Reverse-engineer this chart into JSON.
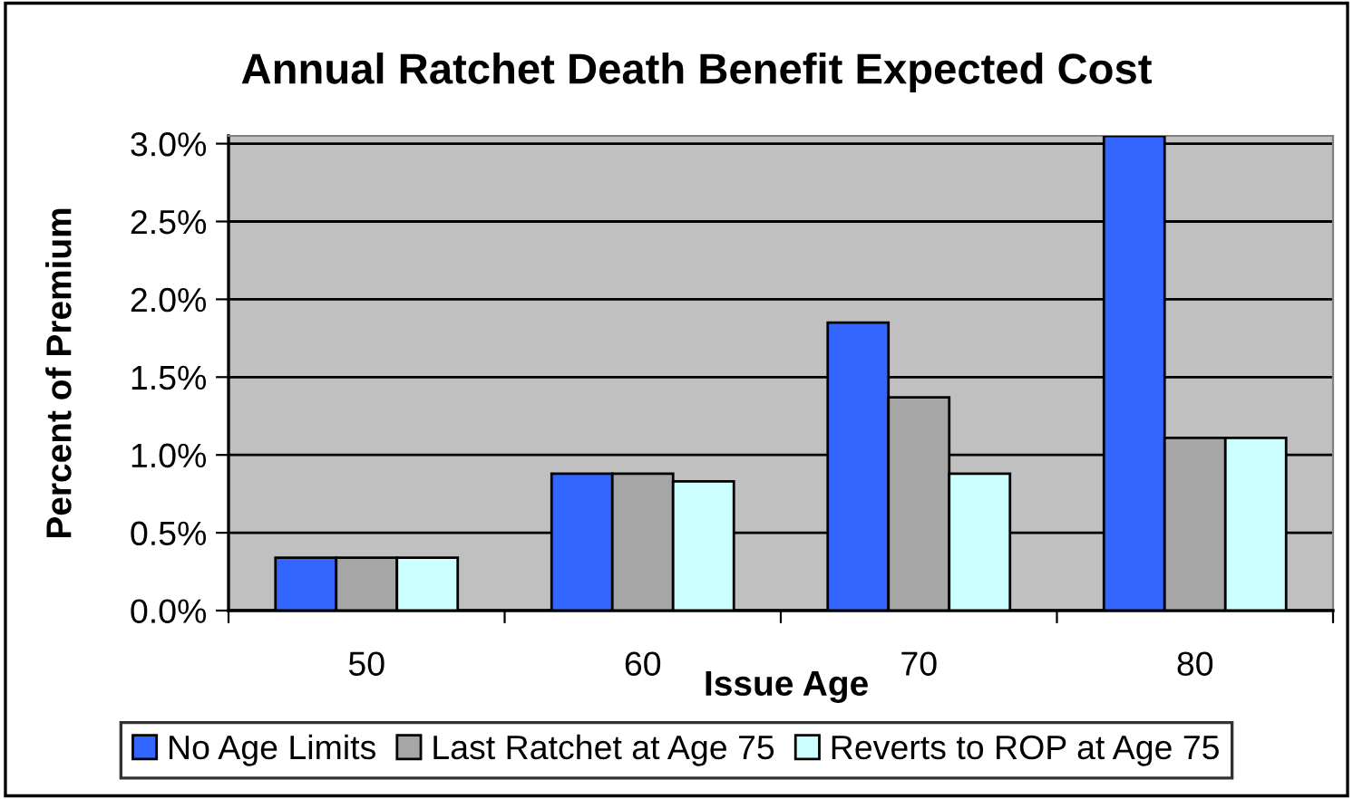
{
  "chart_data": {
    "type": "bar",
    "title": "Annual Ratchet Death Benefit Expected Cost",
    "xlabel": "Issue Age",
    "ylabel": "Percent of Premium",
    "categories": [
      "50",
      "60",
      "70",
      "80"
    ],
    "series": [
      {
        "name": "No Age Limits",
        "color": "#3366ff",
        "values": [
          0.34,
          0.88,
          1.85,
          3.05
        ]
      },
      {
        "name": "Last Ratchet at Age 75",
        "color": "#a6a6a6",
        "values": [
          0.34,
          0.88,
          1.37,
          1.11
        ]
      },
      {
        "name": "Reverts to ROP at Age 75",
        "color": "#ccffff",
        "values": [
          0.34,
          0.83,
          0.88,
          1.11
        ]
      }
    ],
    "ylim": [
      0,
      3.05
    ],
    "yticks": [
      {
        "value": 0,
        "label": "0.0%"
      },
      {
        "value": 0.5,
        "label": "0.5%"
      },
      {
        "value": 1.0,
        "label": "1.0%"
      },
      {
        "value": 1.5,
        "label": "1.5%"
      },
      {
        "value": 2.0,
        "label": "2.0%"
      },
      {
        "value": 2.5,
        "label": "2.5%"
      },
      {
        "value": 3.0,
        "label": "3.0%"
      }
    ],
    "grid": "y",
    "legend": "bottom"
  }
}
